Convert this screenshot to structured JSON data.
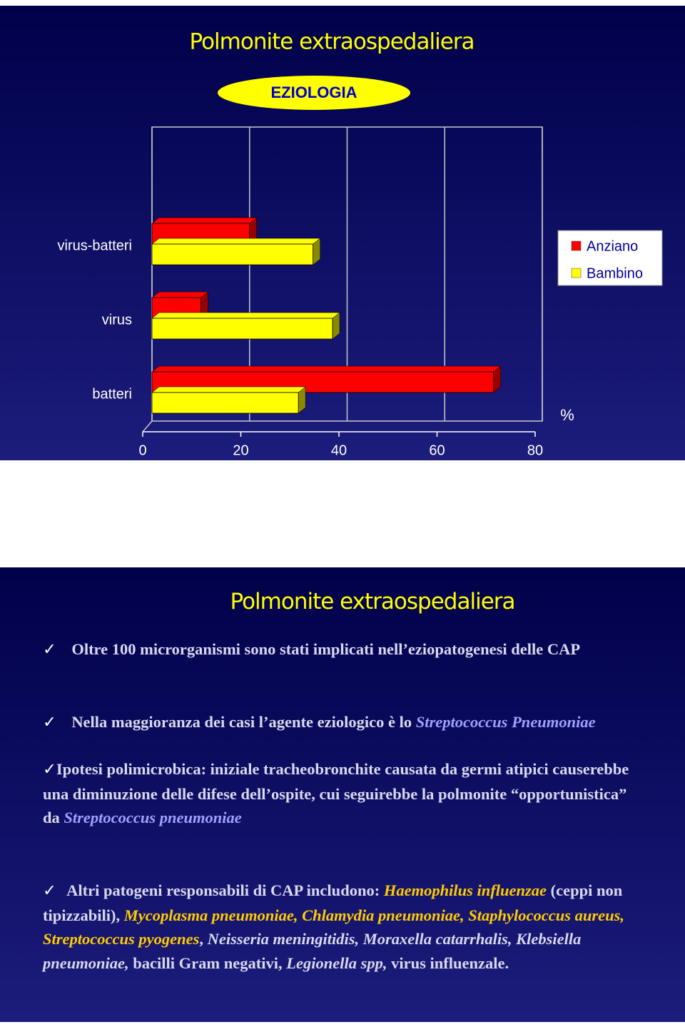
{
  "slide1": {
    "title": "Polmonite extraospedaliera",
    "badge": "EZIOLOGIA"
  },
  "chart_data": {
    "type": "bar",
    "orientation": "horizontal",
    "categories": [
      "virus-batteri",
      "virus",
      "batteri"
    ],
    "series": [
      {
        "name": "Anziano",
        "color": "#ff0000",
        "values": [
          20,
          10,
          70
        ]
      },
      {
        "name": "Bambino",
        "color": "#ffff00",
        "values": [
          33,
          37,
          30
        ]
      }
    ],
    "xlim": [
      0,
      80
    ],
    "xticks": [
      0,
      20,
      40,
      60,
      80
    ],
    "xlabel": "%",
    "grid": true,
    "legend": "right"
  },
  "slide2": {
    "title": "Polmonite extraospedaliera",
    "paragraphs": [
      {
        "segments": [
          {
            "text": "Oltre 100 microrganismi sono stati implicati nell’eziopatogenesi delle CAP",
            "style": "normal",
            "color": "#d8d8f0"
          }
        ]
      },
      {
        "segments": [
          {
            "text": "Nella maggioranza dei casi l’agente eziologico è lo ",
            "style": "normal",
            "color": "#d8d8f0"
          },
          {
            "text": "Streptococcus Pneumoniae",
            "style": "italic",
            "color": "#a0a0ff"
          }
        ]
      },
      {
        "segments": [
          {
            "text": "Ipotesi polimicrobica: iniziale tracheobronchite causata da germi atipici causerebbe una diminuzione delle difese dell’ospite, cui seguirebbe la polmonite “opportunistica” da ",
            "style": "normal",
            "color": "#d8d8f0"
          },
          {
            "text": "Streptococcus pneumoniae",
            "style": "italic",
            "color": "#a0a0ff"
          }
        ]
      },
      {
        "segments": [
          {
            "text": "Altri patogeni responsabili di CAP includono: ",
            "style": "normal",
            "color": "#d8d8f0"
          },
          {
            "text": "Haemophilus influenzae",
            "style": "italic",
            "color": "#ffcc00"
          },
          {
            "text": " (ceppi non tipizzabili), ",
            "style": "normal",
            "color": "#d8d8f0"
          },
          {
            "text": "Mycoplasma pneumoniae, Chlamydia pneumoniae, Staphylococcus aureus, Streptococcus pyogenes",
            "style": "italic",
            "color": "#ffcc00"
          },
          {
            "text": ", ",
            "style": "normal",
            "color": "#d8d8f0"
          },
          {
            "text": "Neisseria meningitidis, Moraxella catarrhalis, Klebsiella pneumoniae,",
            "style": "italic",
            "color": "#d8d8f0"
          },
          {
            "text": " bacilli Gram negativi, ",
            "style": "normal",
            "color": "#d8d8f0"
          },
          {
            "text": "Legionella spp,",
            "style": "italic",
            "color": "#d8d8f0"
          },
          {
            "text": " virus influenzale.",
            "style": "normal",
            "color": "#d8d8f0"
          }
        ]
      }
    ]
  }
}
